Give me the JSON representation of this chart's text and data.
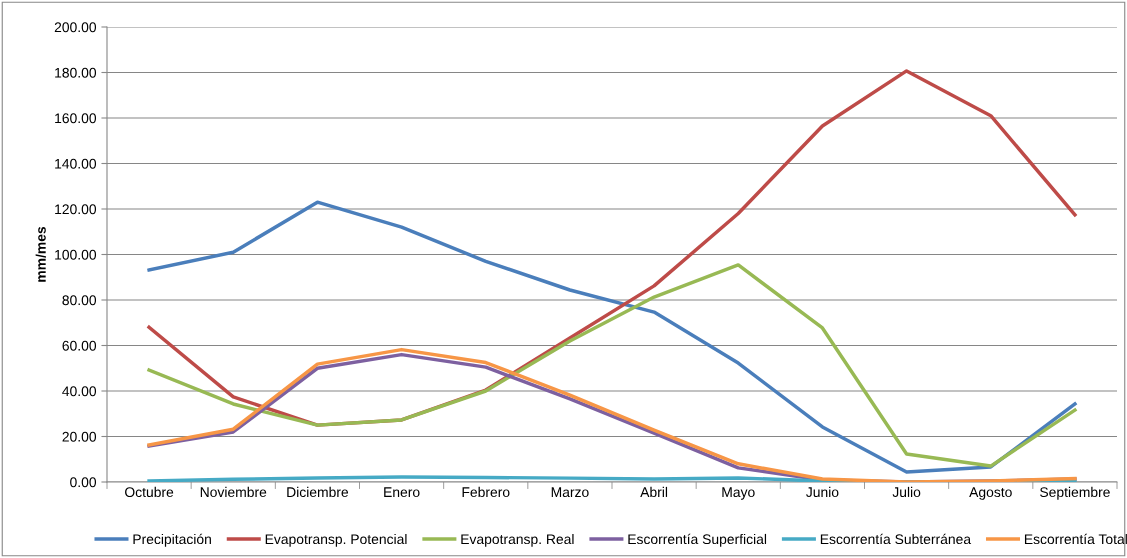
{
  "chart_data": {
    "type": "line",
    "ylabel": "mm/mes",
    "categories": [
      "Octubre",
      "Noviembre",
      "Diciembre",
      "Enero",
      "Febrero",
      "Marzo",
      "Abril",
      "Mayo",
      "Junio",
      "Julio",
      "Agosto",
      "Septiembre"
    ],
    "series": [
      {
        "name": "Precipitación",
        "color": "#4a7ebb",
        "values": [
          93.2,
          101,
          123,
          112,
          97,
          84.4,
          74.7,
          52.3,
          24.2,
          4.4,
          6.6,
          34.3
        ]
      },
      {
        "name": "Evapotransp. Potencial",
        "color": "#be4b48",
        "values": [
          68,
          37.4,
          25,
          27.3,
          40.4,
          63.3,
          86.2,
          118,
          156.5,
          180.7,
          161,
          117.4
        ]
      },
      {
        "name": "Evapotransp. Real",
        "color": "#98b954",
        "values": [
          49.2,
          34.3,
          25,
          27.3,
          40,
          62,
          81.3,
          95.4,
          67.7,
          12.3,
          7,
          31.6
        ]
      },
      {
        "name": "Escorrentía Superficial",
        "color": "#7d60a0",
        "values": [
          15.8,
          22,
          50,
          56,
          50.5,
          36.5,
          21.5,
          6.2,
          0.9,
          0,
          0.4,
          1.3
        ]
      },
      {
        "name": "Escorrentía Subterránea",
        "color": "#46aac5",
        "values": [
          0.5,
          1.2,
          1.8,
          2.2,
          2,
          1.7,
          1.3,
          1.8,
          0.4,
          0,
          0.1,
          0.2
        ]
      },
      {
        "name": "Escorrentía Total",
        "color": "#f79646",
        "values": [
          16.3,
          23.2,
          51.8,
          58.2,
          52.5,
          38.2,
          22.8,
          8,
          1.3,
          0,
          0.5,
          1.5
        ]
      }
    ],
    "ylim": [
      0,
      200
    ],
    "yticks": [
      {
        "value": 0,
        "label": "0.00"
      },
      {
        "value": 20,
        "label": "20.00"
      },
      {
        "value": 40,
        "label": "40.00"
      },
      {
        "value": 60,
        "label": "60.00"
      },
      {
        "value": 80,
        "label": "80.00"
      },
      {
        "value": 100,
        "label": "100.00"
      },
      {
        "value": 120,
        "label": "120.00"
      },
      {
        "value": 140,
        "label": "140.00"
      },
      {
        "value": 160,
        "label": "160.00"
      },
      {
        "value": 180,
        "label": "180.00"
      },
      {
        "value": 200,
        "label": "200.00"
      }
    ],
    "grid": "y",
    "legend": "bottom",
    "marker": "none",
    "line_style": "solid"
  }
}
